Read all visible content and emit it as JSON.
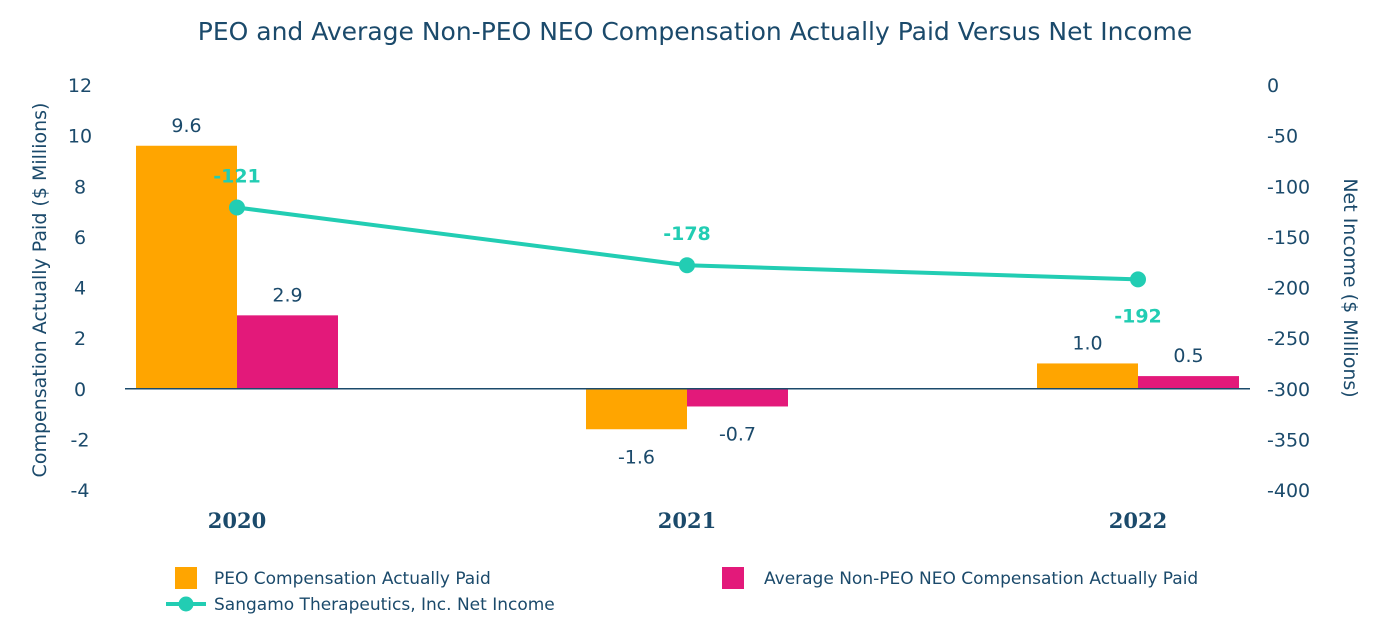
{
  "chart_data": {
    "type": "bar",
    "title": "PEO and Average Non-PEO NEO Compensation Actually Paid Versus Net Income",
    "categories": [
      "2020",
      "2021",
      "2022"
    ],
    "ylabel": "Compensation Actually Paid ($ Millions)",
    "y2label": "Net Income ($ Millions)",
    "ylim": [
      -4,
      12
    ],
    "y2lim": [
      -400,
      0
    ],
    "yticks": [
      "12",
      "10",
      "8",
      "6",
      "4",
      "2",
      "0",
      "-2",
      "-4"
    ],
    "y2ticks": [
      "0",
      "-50",
      "-100",
      "-150",
      "-200",
      "-250",
      "-300",
      "-350",
      "-400"
    ],
    "series": [
      {
        "name": "PEO Compensation Actually Paid",
        "type": "bar",
        "axis": "left",
        "color": "#ffa500",
        "values": [
          9.6,
          -1.6,
          1.0
        ],
        "labels": [
          "9.6",
          "-1.6",
          "1.0"
        ]
      },
      {
        "name": "Average Non-PEO NEO Compensation Actually Paid",
        "type": "bar",
        "axis": "left",
        "color": "#e3197a",
        "values": [
          2.9,
          -0.7,
          0.5
        ],
        "labels": [
          "2.9",
          "-0.7",
          "0.5"
        ]
      },
      {
        "name": "Sangamo Therapeutics, Inc. Net Income",
        "type": "line",
        "axis": "right",
        "color": "#22cdb3",
        "values": [
          -121,
          -178,
          -192
        ],
        "labels": [
          "-121",
          "-178",
          "-192"
        ]
      }
    ],
    "legend_position": "bottom"
  },
  "colors": {
    "text": "#1b4a6b",
    "axis": "#1b4a6b"
  }
}
